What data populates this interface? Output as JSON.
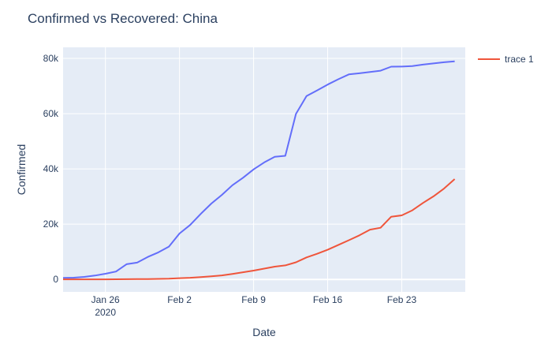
{
  "chart_data": {
    "type": "line",
    "title": "Confirmed vs Recovered: China",
    "xlabel": "Date",
    "ylabel": "Confirmed",
    "x_start": "2020-01-22",
    "xlim": [
      "2020-01-22",
      "2020-02-29"
    ],
    "ylim": [
      -4500,
      84000
    ],
    "x_ticks": [
      {
        "date": "2020-01-26",
        "label": "Jan 26",
        "sublabel": "2020"
      },
      {
        "date": "2020-02-02",
        "label": "Feb 2",
        "sublabel": ""
      },
      {
        "date": "2020-02-09",
        "label": "Feb 9",
        "sublabel": ""
      },
      {
        "date": "2020-02-16",
        "label": "Feb 16",
        "sublabel": ""
      },
      {
        "date": "2020-02-23",
        "label": "Feb 23",
        "sublabel": ""
      }
    ],
    "y_ticks": [
      {
        "value": 0,
        "label": "0"
      },
      {
        "value": 20000,
        "label": "20k"
      },
      {
        "value": 40000,
        "label": "40k"
      },
      {
        "value": 60000,
        "label": "60k"
      },
      {
        "value": 80000,
        "label": "80k"
      }
    ],
    "grid": true,
    "legend": {
      "placement": "top-right",
      "entries": [
        "trace 1"
      ]
    },
    "series": [
      {
        "color": "#636efa",
        "show_in_legend": false,
        "values": [
          548,
          643,
          920,
          1406,
          2075,
          2877,
          5509,
          6087,
          8141,
          9802,
          11891,
          16630,
          19716,
          23707,
          27440,
          30587,
          34110,
          36814,
          39829,
          42354,
          44386,
          44759,
          59895,
          66358,
          68413,
          70513,
          72434,
          74211,
          74619,
          75077,
          75550,
          77001,
          77022,
          77241,
          77754,
          78166,
          78600,
          78928
        ]
      },
      {
        "name": "trace 1",
        "color": "#ef553b",
        "show_in_legend": true,
        "values": [
          28,
          30,
          36,
          39,
          49,
          58,
          101,
          120,
          135,
          214,
          275,
          463,
          614,
          843,
          1115,
          1476,
          1998,
          2595,
          3218,
          3918,
          4636,
          5082,
          6217,
          7977,
          9298,
          10755,
          12462,
          14206,
          15962,
          18014,
          18704,
          22699,
          23187,
          25015,
          27676,
          30084,
          32930,
          36329
        ]
      }
    ]
  }
}
